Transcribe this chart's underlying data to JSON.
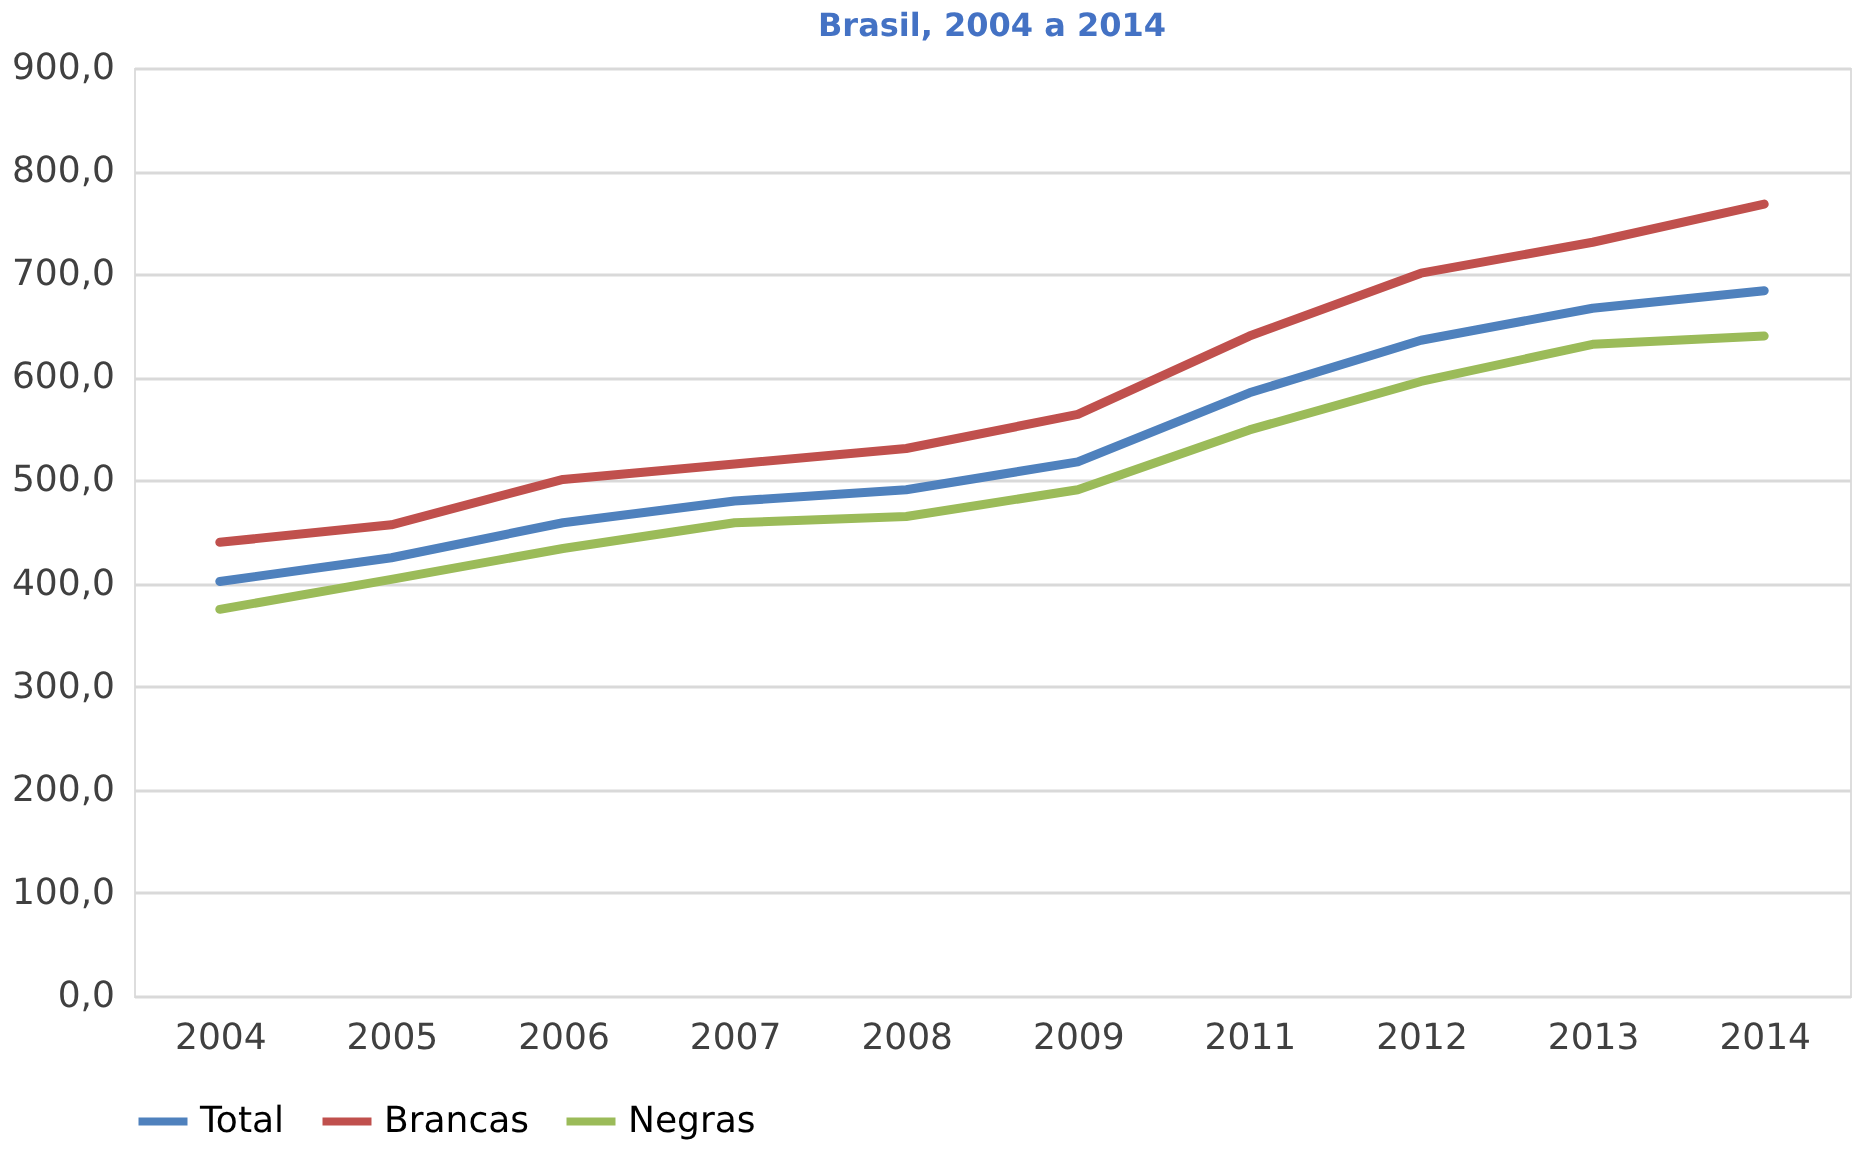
{
  "chart_data": {
    "type": "line",
    "title": "Brasil, 2004 a 2014",
    "categories": [
      "2004",
      "2005",
      "2006",
      "2007",
      "2008",
      "2009",
      "2011",
      "2012",
      "2013",
      "2014"
    ],
    "series": [
      {
        "name": "Total",
        "color": "#4f81bd",
        "values": [
          402,
          425,
          459,
          480,
          491,
          518,
          585,
          636,
          667,
          684
        ]
      },
      {
        "name": "Brancas",
        "color": "#c0504d",
        "values": [
          440,
          457,
          501,
          516,
          531,
          564,
          640,
          701,
          731,
          768
        ]
      },
      {
        "name": "Negras",
        "color": "#9bbb59",
        "values": [
          375,
          404,
          434,
          459,
          465,
          491,
          549,
          596,
          632,
          640
        ]
      }
    ],
    "ylim": [
      0,
      900
    ],
    "yticks": [
      {
        "value": 0,
        "label": "0,0"
      },
      {
        "value": 100,
        "label": "100,0"
      },
      {
        "value": 200,
        "label": "200,0"
      },
      {
        "value": 300,
        "label": "300,0"
      },
      {
        "value": 400,
        "label": "400,0"
      },
      {
        "value": 500,
        "label": "500,0"
      },
      {
        "value": 600,
        "label": "600,0"
      },
      {
        "value": 700,
        "label": "700,0"
      },
      {
        "value": 800,
        "label": "800,0"
      },
      {
        "value": 900,
        "label": "900,0"
      }
    ],
    "grid": "y",
    "legend": "bottom",
    "marker": "none",
    "line_style": "solid"
  }
}
